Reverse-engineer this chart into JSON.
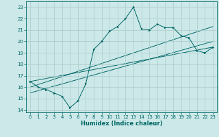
{
  "xlabel": "Humidex (Indice chaleur)",
  "xlim": [
    -0.5,
    23.5
  ],
  "ylim": [
    13.8,
    23.5
  ],
  "yticks": [
    14,
    15,
    16,
    17,
    18,
    19,
    20,
    21,
    22,
    23
  ],
  "xticks": [
    0,
    1,
    2,
    3,
    4,
    5,
    6,
    7,
    8,
    9,
    10,
    11,
    12,
    13,
    14,
    15,
    16,
    17,
    18,
    19,
    20,
    21,
    22,
    23
  ],
  "bg_color": "#cce8e8",
  "grid_color": "#aacccc",
  "line_color": "#006666",
  "main_line": {
    "x": [
      0,
      1,
      2,
      3,
      4,
      5,
      6,
      7,
      8,
      9,
      10,
      11,
      12,
      13,
      14,
      15,
      16,
      17,
      18,
      19,
      20,
      21,
      22,
      23
    ],
    "y": [
      16.5,
      16.0,
      15.8,
      15.5,
      15.2,
      14.2,
      14.8,
      16.3,
      19.3,
      20.0,
      20.9,
      21.3,
      22.0,
      23.0,
      21.1,
      21.0,
      21.5,
      21.2,
      21.2,
      20.5,
      20.3,
      19.2,
      19.0,
      19.5
    ]
  },
  "line1": {
    "x": [
      0,
      23
    ],
    "y": [
      16.0,
      21.3
    ]
  },
  "line2": {
    "x": [
      0,
      23
    ],
    "y": [
      16.5,
      19.5
    ]
  },
  "line3": {
    "x": [
      0,
      23
    ],
    "y": [
      15.5,
      20.0
    ]
  }
}
